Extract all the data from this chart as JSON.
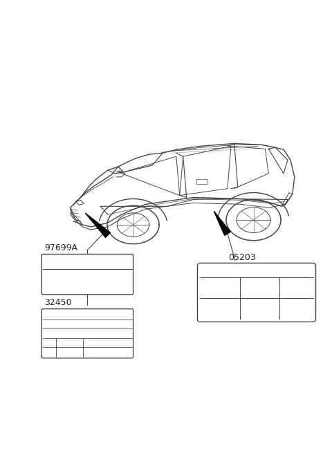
{
  "bg_color": "#ffffff",
  "line_color": "#444444",
  "label_color": "#222222",
  "label_97699A": "97699A",
  "label_32450": "32450",
  "label_05203": "05203",
  "font_size_label": 9,
  "font_size_part": 8
}
